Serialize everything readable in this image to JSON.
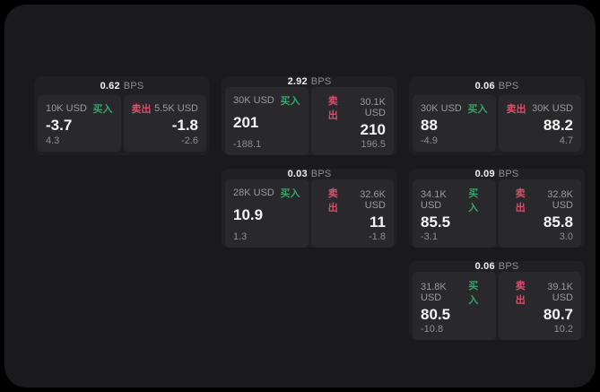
{
  "colors": {
    "buy_green": "#36a46c",
    "sell_red": "#d9506c",
    "surface_bg": "#1a1a1c",
    "card_bg": "#202023",
    "panel_bg": "#29292c"
  },
  "spread_unit": "BPS",
  "cards": [
    {
      "col": 1,
      "row": 1,
      "spread": "0.62",
      "buy": {
        "notional": "10K USD",
        "label": "买入",
        "price": "-3.7",
        "secondary": "4.3"
      },
      "sell": {
        "label": "卖出",
        "notional": "5.5K USD",
        "price": "-1.8",
        "secondary": "-2.6"
      }
    },
    {
      "col": 2,
      "row": 1,
      "spread": "2.92",
      "buy": {
        "notional": "30K USD",
        "label": "买入",
        "price": "201",
        "secondary": "-188.1"
      },
      "sell": {
        "label": "卖出",
        "notional": "30.1K USD",
        "price": "210",
        "secondary": "196.5"
      }
    },
    {
      "col": 3,
      "row": 1,
      "spread": "0.06",
      "buy": {
        "notional": "30K USD",
        "label": "买入",
        "price": "88",
        "secondary": "-4.9"
      },
      "sell": {
        "label": "卖出",
        "notional": "30K USD",
        "price": "88.2",
        "secondary": "4.7"
      }
    },
    {
      "col": 2,
      "row": 2,
      "spread": "0.03",
      "buy": {
        "notional": "28K USD",
        "label": "买入",
        "price": "10.9",
        "secondary": "1.3"
      },
      "sell": {
        "label": "卖出",
        "notional": "32.6K USD",
        "price": "11",
        "secondary": "-1.8"
      }
    },
    {
      "col": 3,
      "row": 2,
      "spread": "0.09",
      "buy": {
        "notional": "34.1K USD",
        "label": "买入",
        "price": "85.5",
        "secondary": "-3.1"
      },
      "sell": {
        "label": "卖出",
        "notional": "32.8K USD",
        "price": "85.8",
        "secondary": "3.0"
      }
    },
    {
      "col": 3,
      "row": 3,
      "spread": "0.06",
      "buy": {
        "notional": "31.8K USD",
        "label": "买入",
        "price": "80.5",
        "secondary": "-10.8"
      },
      "sell": {
        "label": "卖出",
        "notional": "39.1K USD",
        "price": "80.7",
        "secondary": "10.2"
      }
    }
  ]
}
